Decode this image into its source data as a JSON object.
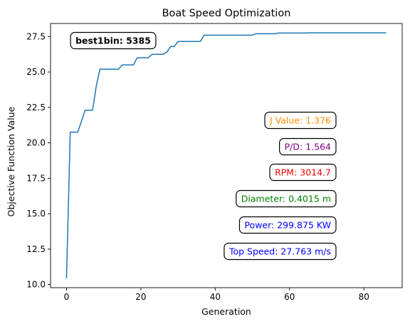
{
  "chart_data": {
    "type": "line",
    "title": "Boat Speed Optimization",
    "xlabel": "Generation",
    "ylabel": "Objective Function Value",
    "xlim": [
      -4.3,
      90.3
    ],
    "ylim": [
      9.78,
      28.42
    ],
    "x_ticks": [
      0,
      20,
      40,
      60,
      80
    ],
    "y_ticks": [
      10.0,
      12.5,
      15.0,
      17.5,
      20.0,
      22.5,
      25.0,
      27.5
    ],
    "grid": false,
    "series": [
      {
        "color": "#1f77b4",
        "x": [
          0,
          1,
          2,
          3,
          4,
          5,
          6,
          7,
          8,
          9,
          10,
          11,
          12,
          13,
          14,
          15,
          16,
          17,
          18,
          19,
          20,
          21,
          22,
          23,
          24,
          25,
          26,
          27,
          28,
          29,
          30,
          31,
          32,
          33,
          34,
          35,
          36,
          37,
          38,
          39,
          40,
          42,
          44,
          46,
          48,
          50,
          51,
          52,
          54,
          56,
          57,
          58,
          60,
          62,
          64,
          65,
          66,
          68,
          70,
          72,
          74,
          76,
          77,
          78,
          80,
          82,
          84,
          86
        ],
        "y": [
          10.45,
          20.75,
          20.75,
          20.75,
          21.5,
          22.3,
          22.3,
          22.3,
          24.0,
          25.2,
          25.2,
          25.2,
          25.2,
          25.2,
          25.2,
          25.5,
          25.5,
          25.5,
          25.5,
          26.0,
          26.0,
          26.0,
          26.0,
          26.25,
          26.25,
          26.25,
          26.25,
          26.4,
          26.8,
          26.8,
          27.15,
          27.15,
          27.15,
          27.15,
          27.15,
          27.15,
          27.15,
          27.6,
          27.6,
          27.6,
          27.6,
          27.6,
          27.6,
          27.6,
          27.6,
          27.6,
          27.7,
          27.7,
          27.7,
          27.7,
          27.75,
          27.75,
          27.75,
          27.75,
          27.75,
          27.76,
          27.76,
          27.76,
          27.76,
          27.76,
          27.76,
          27.76,
          27.763,
          27.763,
          27.763,
          27.763,
          27.763,
          27.763
        ]
      }
    ],
    "annotations": [
      {
        "text": "best1bin: 5385",
        "color": "#000000",
        "bold": true
      },
      {
        "text": "J Value: 1.376",
        "color": "#ff8c00",
        "bold": false
      },
      {
        "text": "P/D: 1.564",
        "color": "#800080",
        "bold": false
      },
      {
        "text": "RPM: 3014.7",
        "color": "#ff0000",
        "bold": false
      },
      {
        "text": "Diameter: 0.4015 m",
        "color": "#008000",
        "bold": false
      },
      {
        "text": "Power: 299.875 KW",
        "color": "#0000ff",
        "bold": false
      },
      {
        "text": "Top Speed: 27.763 m/s",
        "color": "#0000ff",
        "bold": false
      }
    ]
  }
}
